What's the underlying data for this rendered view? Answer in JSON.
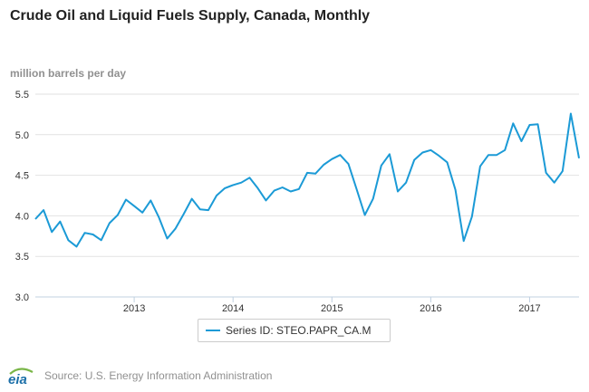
{
  "title": "Crude Oil and Liquid Fuels Supply, Canada, Monthly",
  "legend": {
    "label": "Series ID: STEO.PAPR_CA.M"
  },
  "source": "Source: U.S. Energy Information Administration",
  "logo": {
    "name": "eia-logo",
    "text": "eia"
  },
  "colors": {
    "line": "#1b9ad6",
    "grid": "#e2e2e2",
    "axis": "#c0d0e0",
    "logo_green": "#7ab648",
    "logo_blue": "#1b6fa8"
  },
  "chart_data": {
    "type": "line",
    "title": "Crude Oil and Liquid Fuels Supply, Canada, Monthly",
    "ylabel": "million barrels per day",
    "xlabel": "",
    "ylim": [
      3.0,
      5.5
    ],
    "yticks": [
      "3.0",
      "3.5",
      "4.0",
      "4.5",
      "5.0",
      "5.5"
    ],
    "xticks": [
      "2013",
      "2014",
      "2015",
      "2016",
      "2017"
    ],
    "xlim": [
      "2012-01",
      "2017-07"
    ],
    "grid": "horizontal",
    "legend_position": "bottom-center",
    "series": [
      {
        "name": "Series ID: STEO.PAPR_CA.M",
        "x": [
          "2012-01",
          "2012-02",
          "2012-03",
          "2012-04",
          "2012-05",
          "2012-06",
          "2012-07",
          "2012-08",
          "2012-09",
          "2012-10",
          "2012-11",
          "2012-12",
          "2013-01",
          "2013-02",
          "2013-03",
          "2013-04",
          "2013-05",
          "2013-06",
          "2013-07",
          "2013-08",
          "2013-09",
          "2013-10",
          "2013-11",
          "2013-12",
          "2014-01",
          "2014-02",
          "2014-03",
          "2014-04",
          "2014-05",
          "2014-06",
          "2014-07",
          "2014-08",
          "2014-09",
          "2014-10",
          "2014-11",
          "2014-12",
          "2015-01",
          "2015-02",
          "2015-03",
          "2015-04",
          "2015-05",
          "2015-06",
          "2015-07",
          "2015-08",
          "2015-09",
          "2015-10",
          "2015-11",
          "2015-12",
          "2016-01",
          "2016-02",
          "2016-03",
          "2016-04",
          "2016-05",
          "2016-06",
          "2016-07",
          "2016-08",
          "2016-09",
          "2016-10",
          "2016-11",
          "2016-12",
          "2017-01",
          "2017-02",
          "2017-03",
          "2017-04",
          "2017-05",
          "2017-06",
          "2017-07"
        ],
        "values": [
          3.96,
          4.07,
          3.8,
          3.93,
          3.7,
          3.62,
          3.79,
          3.77,
          3.7,
          3.91,
          4.01,
          4.2,
          4.12,
          4.04,
          4.19,
          3.98,
          3.72,
          3.84,
          4.02,
          4.21,
          4.08,
          4.07,
          4.25,
          4.34,
          4.38,
          4.41,
          4.47,
          4.34,
          4.19,
          4.31,
          4.35,
          4.3,
          4.33,
          4.53,
          4.52,
          4.63,
          4.7,
          4.75,
          4.64,
          4.33,
          4.01,
          4.21,
          4.62,
          4.76,
          4.3,
          4.41,
          4.69,
          4.78,
          4.81,
          4.74,
          4.66,
          4.32,
          3.69,
          3.99,
          4.61,
          4.75,
          4.75,
          4.81,
          5.14,
          4.92,
          5.12,
          5.13,
          4.53,
          4.41,
          4.55,
          5.26,
          4.71
        ]
      }
    ]
  }
}
